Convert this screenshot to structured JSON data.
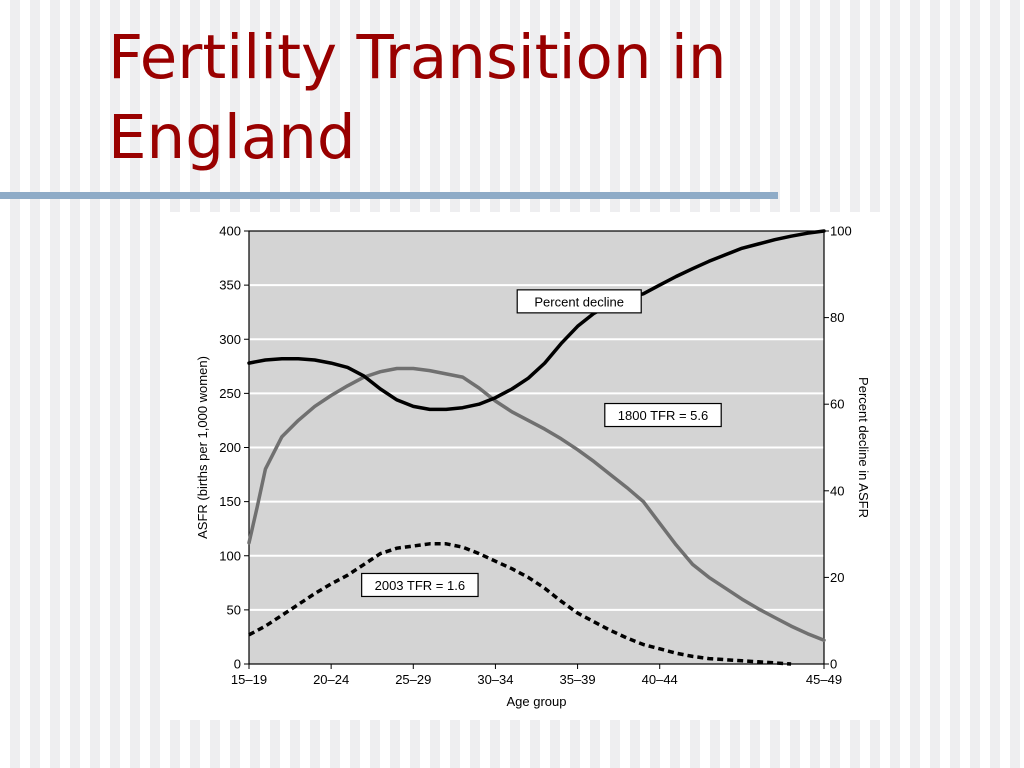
{
  "slide": {
    "title": "Fertility Transition in\nEngland"
  },
  "chart_data": {
    "type": "line",
    "title": "",
    "xlabel": "Age group",
    "ylabel": "ASFR (births per 1,000 women)",
    "ylabel_right": "Percent decline in ASFR",
    "categories": [
      "15–19",
      "20–24",
      "25–29",
      "30–34",
      "35–39",
      "40–44",
      "45–49"
    ],
    "x_range": [
      15,
      50
    ],
    "ylim": [
      0,
      400
    ],
    "ylim_right": [
      0,
      100
    ],
    "yticks": [
      0,
      50,
      100,
      150,
      200,
      250,
      300,
      350,
      400
    ],
    "yticks_right": [
      0,
      20,
      40,
      60,
      80,
      100
    ],
    "grid": true,
    "series": [
      {
        "name": "1800 TFR = 5.6",
        "axis": "left",
        "style": "solid",
        "color": "#707070",
        "x": [
          15,
          15.5,
          16,
          17,
          18,
          19,
          20,
          21,
          22,
          23,
          24,
          25,
          26,
          27,
          28,
          29,
          30,
          31,
          32,
          33,
          34,
          35,
          36,
          37,
          38,
          39,
          40,
          41,
          42,
          43,
          44,
          45,
          46,
          47,
          48,
          49,
          50
        ],
        "values": [
          112,
          145,
          180,
          210,
          225,
          238,
          248,
          257,
          265,
          270,
          273,
          273,
          271,
          268,
          265,
          255,
          243,
          233,
          225,
          217,
          208,
          198,
          187,
          175,
          163,
          150,
          130,
          110,
          92,
          80,
          70,
          60,
          51,
          43,
          35,
          28,
          22
        ]
      },
      {
        "name": "2003 TFR = 1.6",
        "axis": "left",
        "style": "dashed",
        "color": "#000000",
        "x": [
          15,
          16,
          17,
          18,
          19,
          20,
          21,
          22,
          23,
          24,
          25,
          26,
          27,
          28,
          29,
          30,
          31,
          32,
          33,
          34,
          35,
          36,
          37,
          38,
          39,
          40,
          41,
          42,
          43,
          44,
          45,
          46,
          47,
          48
        ],
        "values": [
          27,
          35,
          45,
          55,
          65,
          74,
          82,
          92,
          102,
          107,
          109,
          111,
          111,
          108,
          102,
          95,
          88,
          80,
          70,
          58,
          47,
          39,
          31,
          24,
          18,
          14,
          10,
          7,
          5,
          4,
          3,
          2,
          1,
          0
        ]
      },
      {
        "name": "Percent decline",
        "axis": "right",
        "style": "solid",
        "color": "#000000",
        "x": [
          15,
          16,
          17,
          18,
          19,
          20,
          21,
          22,
          23,
          24,
          25,
          26,
          27,
          28,
          29,
          30,
          31,
          32,
          33,
          34,
          35,
          36,
          37,
          38,
          39,
          40,
          41,
          42,
          43,
          44,
          45,
          46,
          47,
          48,
          49,
          50
        ],
        "values": [
          69.5,
          70.2,
          70.5,
          70.5,
          70.2,
          69.5,
          68.5,
          66.5,
          63.5,
          61,
          59.5,
          58.8,
          58.8,
          59.2,
          60,
          61.5,
          63.5,
          66,
          69.5,
          74,
          78,
          81,
          83,
          84.5,
          85.5,
          87.5,
          89.5,
          91.3,
          93,
          94.5,
          96,
          97,
          98,
          98.8,
          99.5,
          100
        ]
      }
    ],
    "annotations": [
      {
        "text": "Percent decline",
        "x": 35.1,
        "y": 335,
        "axis": "left"
      },
      {
        "text": "1800 TFR = 5.6",
        "x": 40.2,
        "y": 230,
        "axis": "left"
      },
      {
        "text": "2003 TFR = 1.6",
        "x": 25.4,
        "y": 73,
        "axis": "left"
      }
    ]
  }
}
